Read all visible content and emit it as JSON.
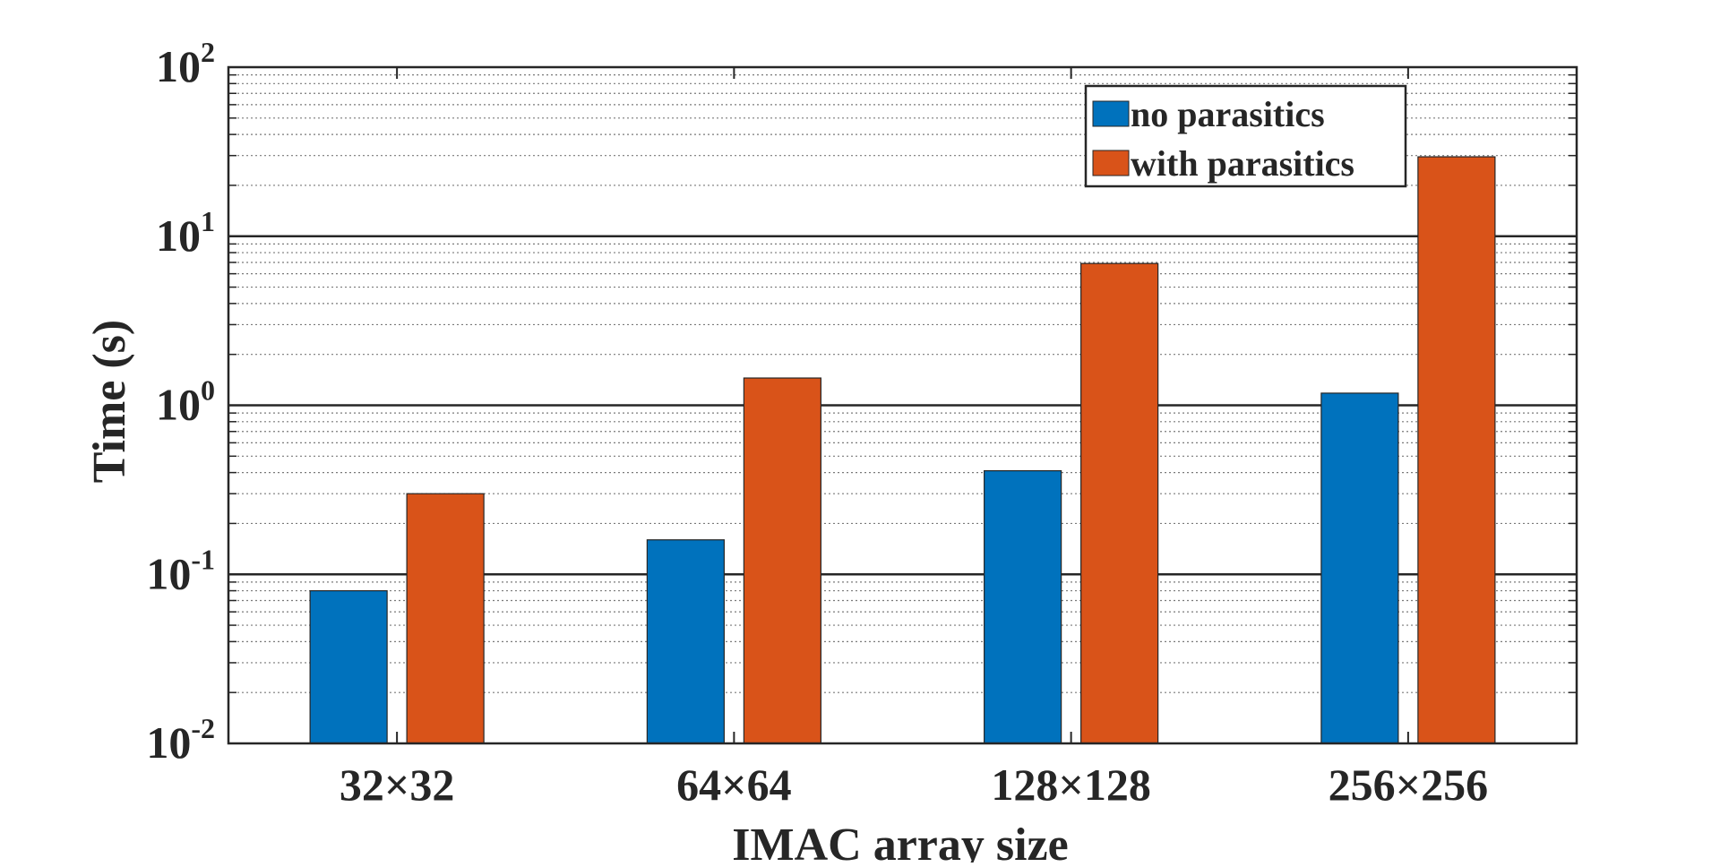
{
  "chart_data": {
    "type": "bar",
    "title": "",
    "xlabel": "IMAC array size",
    "ylabel": "Time (s)",
    "yscale": "log",
    "ylim": [
      0.01,
      100
    ],
    "grid": true,
    "legend_position": "top-right",
    "categories": [
      "32×32",
      "64×64",
      "128×128",
      "256×256"
    ],
    "yticks": [
      {
        "base": "10",
        "exp": "-2"
      },
      {
        "base": "10",
        "exp": "-1"
      },
      {
        "base": "10",
        "exp": "0"
      },
      {
        "base": "10",
        "exp": "1"
      },
      {
        "base": "10",
        "exp": "2"
      }
    ],
    "series": [
      {
        "name": "no parasitics",
        "color": "#0072BD",
        "values": [
          0.08,
          0.16,
          0.41,
          1.18
        ]
      },
      {
        "name": "with parasitics",
        "color": "#D95319",
        "values": [
          0.3,
          1.45,
          6.9,
          29.5
        ]
      }
    ]
  }
}
